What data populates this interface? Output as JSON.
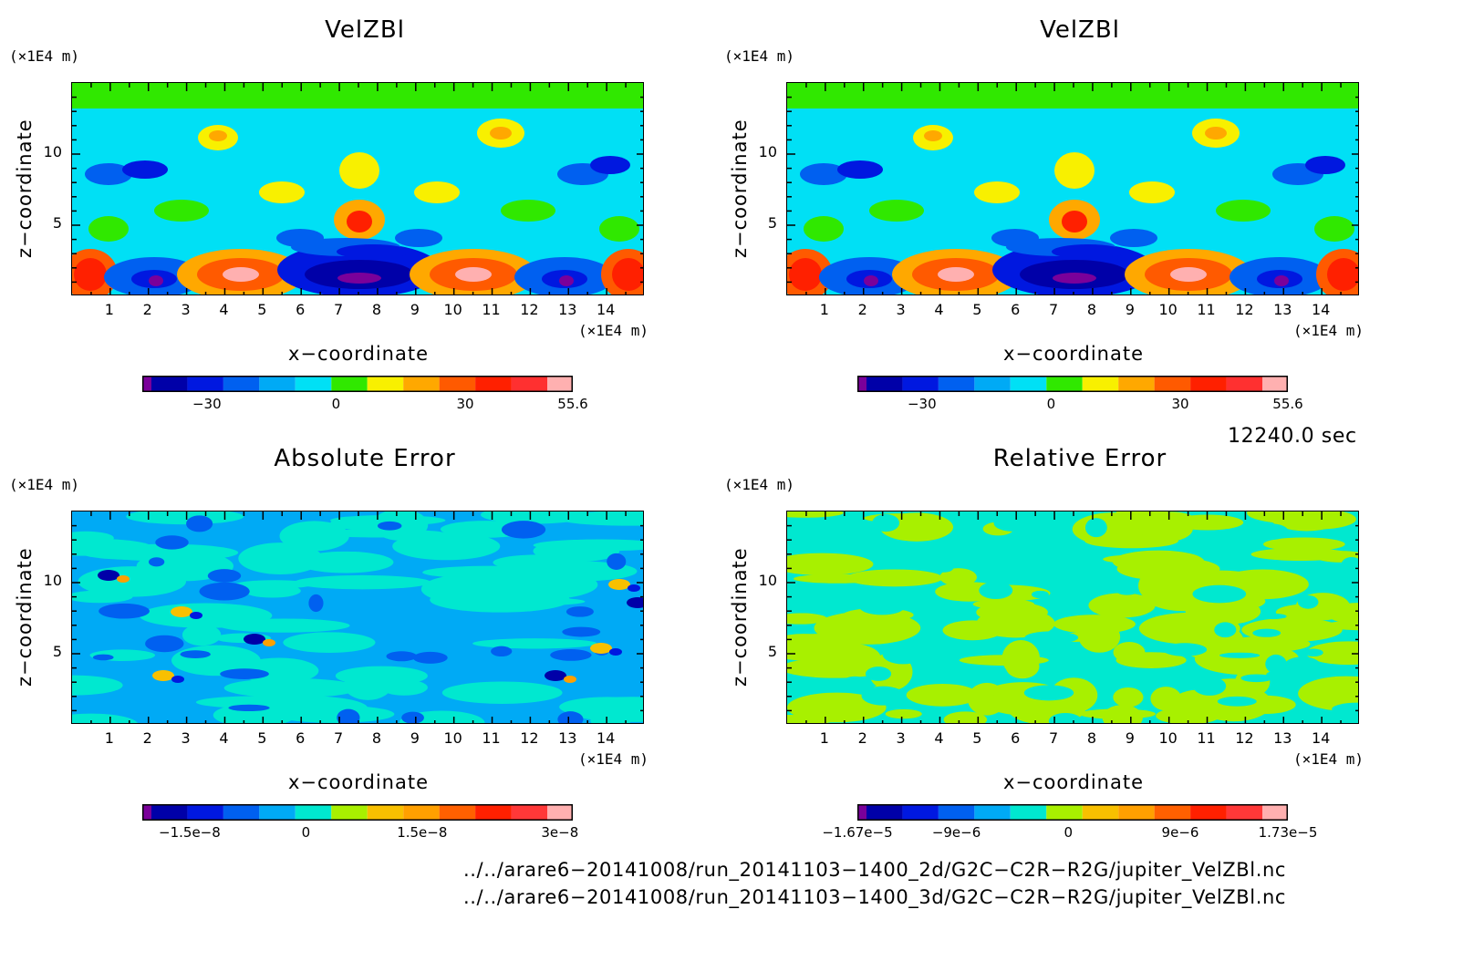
{
  "chart_data": [
    {
      "type": "heatmap",
      "title": "VelZBl",
      "xlabel": "x−coordinate",
      "ylabel": "z−coordinate",
      "x_unit": "(×1E4 m)",
      "y_unit": "(×1E4 m)",
      "x_ticks": [
        "1",
        "2",
        "3",
        "4",
        "5",
        "6",
        "7",
        "8",
        "9",
        "10",
        "11",
        "12",
        "13",
        "14"
      ],
      "y_ticks": [
        "5",
        "10"
      ],
      "xlim": [
        0,
        15
      ],
      "ylim": [
        0,
        15
      ],
      "colorbar_ticks": [
        "−30",
        "0",
        "30",
        "55.6"
      ],
      "colorbar_colors": [
        "#7a009a",
        "#0000a8",
        "#0018e0",
        "#0060f0",
        "#00aaf5",
        "#00e0f5",
        "#30e800",
        "#f8f000",
        "#ffa800",
        "#ff5a00",
        "#ff2000",
        "#ff3030",
        "#ffb0b0"
      ]
    },
    {
      "type": "heatmap",
      "title": "VelZBl",
      "xlabel": "x−coordinate",
      "ylabel": "z−coordinate",
      "x_unit": "(×1E4 m)",
      "y_unit": "(×1E4 m)",
      "x_ticks": [
        "1",
        "2",
        "3",
        "4",
        "5",
        "6",
        "7",
        "8",
        "9",
        "10",
        "11",
        "12",
        "13",
        "14"
      ],
      "y_ticks": [
        "5",
        "10"
      ],
      "xlim": [
        0,
        15
      ],
      "ylim": [
        0,
        15
      ],
      "colorbar_ticks": [
        "−30",
        "0",
        "30",
        "55.6"
      ],
      "colorbar_colors": [
        "#7a009a",
        "#0000a8",
        "#0018e0",
        "#0060f0",
        "#00aaf5",
        "#00e0f5",
        "#30e800",
        "#f8f000",
        "#ffa800",
        "#ff5a00",
        "#ff2000",
        "#ff3030",
        "#ffb0b0"
      ]
    },
    {
      "type": "heatmap",
      "title": "Absolute Error",
      "xlabel": "x−coordinate",
      "ylabel": "z−coordinate",
      "x_unit": "(×1E4 m)",
      "y_unit": "(×1E4 m)",
      "x_ticks": [
        "1",
        "2",
        "3",
        "4",
        "5",
        "6",
        "7",
        "8",
        "9",
        "10",
        "11",
        "12",
        "13",
        "14"
      ],
      "y_ticks": [
        "5",
        "10"
      ],
      "xlim": [
        0,
        15
      ],
      "ylim": [
        0,
        15
      ],
      "colorbar_ticks": [
        "−1.5e−8",
        "0",
        "1.5e−8",
        "3e−8"
      ],
      "colorbar_colors": [
        "#7a009a",
        "#0000a8",
        "#0018e0",
        "#0060f0",
        "#00aaf5",
        "#00e8d0",
        "#a8f000",
        "#f8c000",
        "#ffa000",
        "#ff6000",
        "#ff2000",
        "#ff3838",
        "#ffb0b0"
      ]
    },
    {
      "type": "heatmap",
      "title": "Relative Error",
      "xlabel": "x−coordinate",
      "ylabel": "z−coordinate",
      "x_unit": "(×1E4 m)",
      "y_unit": "(×1E4 m)",
      "x_ticks": [
        "1",
        "2",
        "3",
        "4",
        "5",
        "6",
        "7",
        "8",
        "9",
        "10",
        "11",
        "12",
        "13",
        "14"
      ],
      "y_ticks": [
        "5",
        "10"
      ],
      "xlim": [
        0,
        15
      ],
      "ylim": [
        0,
        15
      ],
      "colorbar_ticks": [
        "−1.67e−5",
        "−9e−6",
        "0",
        "9e−6",
        "1.73e−5"
      ],
      "colorbar_colors": [
        "#7a009a",
        "#0000a8",
        "#0018e0",
        "#0060f0",
        "#00aaf5",
        "#00e8d0",
        "#a8f000",
        "#f8c000",
        "#ffa000",
        "#ff6000",
        "#ff2000",
        "#ff3838",
        "#ffb0b0"
      ]
    }
  ],
  "time_label": "12240.0 sec",
  "files": [
    "../../arare6−20141008/run_20141103−1400_2d/G2C−C2R−R2G/jupiter_VelZBl.nc",
    "../../arare6−20141008/run_20141103−1400_3d/G2C−C2R−R2G/jupiter_VelZBl.nc"
  ]
}
